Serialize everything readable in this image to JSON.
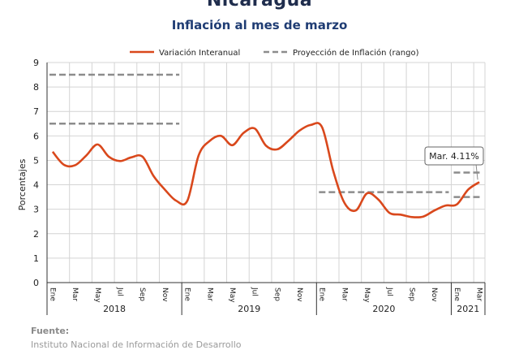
{
  "header": {
    "country": "Nicaragua",
    "title": "Inflación al mes de marzo"
  },
  "source": {
    "label": "Fuente:",
    "text": "Instituto Nacional de Información de Desarrollo"
  },
  "colors": {
    "series": "#d9481c",
    "projection": "#8c8c8c",
    "grid": "#d4d4d4",
    "axis": "#333333",
    "title": "#1f3c73"
  },
  "chart_data": {
    "type": "line",
    "title": "Inflación al mes de marzo",
    "ylabel": "Porcentajes",
    "xlabel": "",
    "ylim": [
      0,
      9
    ],
    "yticks": [
      "0",
      "1",
      "2",
      "3",
      "4",
      "5",
      "6",
      "7",
      "8",
      "9"
    ],
    "grid": true,
    "legend": "top",
    "month_labels": [
      "Ene",
      "Mar",
      "May",
      "Jul",
      "Sep",
      "Nov",
      "Ene",
      "Mar",
      "May",
      "Jul",
      "Sep",
      "Nov",
      "Ene",
      "Mar",
      "May",
      "Jul",
      "Sep",
      "Nov",
      "Ene",
      "Mar"
    ],
    "year_labels": [
      "2018",
      "2019",
      "2020",
      "2021"
    ],
    "x": [
      "2018-01",
      "2018-02",
      "2018-03",
      "2018-04",
      "2018-05",
      "2018-06",
      "2018-07",
      "2018-08",
      "2018-09",
      "2018-10",
      "2018-11",
      "2018-12",
      "2019-01",
      "2019-02",
      "2019-03",
      "2019-04",
      "2019-05",
      "2019-06",
      "2019-07",
      "2019-08",
      "2019-09",
      "2019-10",
      "2019-11",
      "2019-12",
      "2020-01",
      "2020-02",
      "2020-03",
      "2020-04",
      "2020-05",
      "2020-06",
      "2020-07",
      "2020-08",
      "2020-09",
      "2020-10",
      "2020-11",
      "2020-12",
      "2021-01",
      "2021-02",
      "2021-03"
    ],
    "series": [
      {
        "name": "Variación Interanual",
        "values": [
          5.35,
          4.82,
          4.8,
          5.2,
          5.65,
          5.15,
          4.97,
          5.12,
          5.15,
          4.35,
          3.8,
          3.35,
          3.35,
          5.2,
          5.8,
          6.0,
          5.62,
          6.12,
          6.3,
          5.6,
          5.45,
          5.8,
          6.22,
          6.45,
          6.35,
          4.55,
          3.25,
          2.95,
          3.65,
          3.4,
          2.85,
          2.78,
          2.68,
          2.7,
          2.95,
          3.15,
          3.2,
          3.8,
          4.11
        ]
      }
    ],
    "projection": {
      "name": "Proyección de Inflación (rango)",
      "ranges": [
        {
          "from": "2018-01",
          "to": "2018-12",
          "low": 6.5,
          "high": 8.5
        },
        {
          "from": "2020-01",
          "to": "2020-12",
          "low": 3.7,
          "high": 3.7
        },
        {
          "from": "2021-01",
          "to": "2021-03",
          "low": 3.5,
          "high": 4.5
        }
      ]
    },
    "annotations": [
      {
        "text": "Mar. 4.11%",
        "x": "2021-03",
        "y": 4.11
      }
    ]
  }
}
